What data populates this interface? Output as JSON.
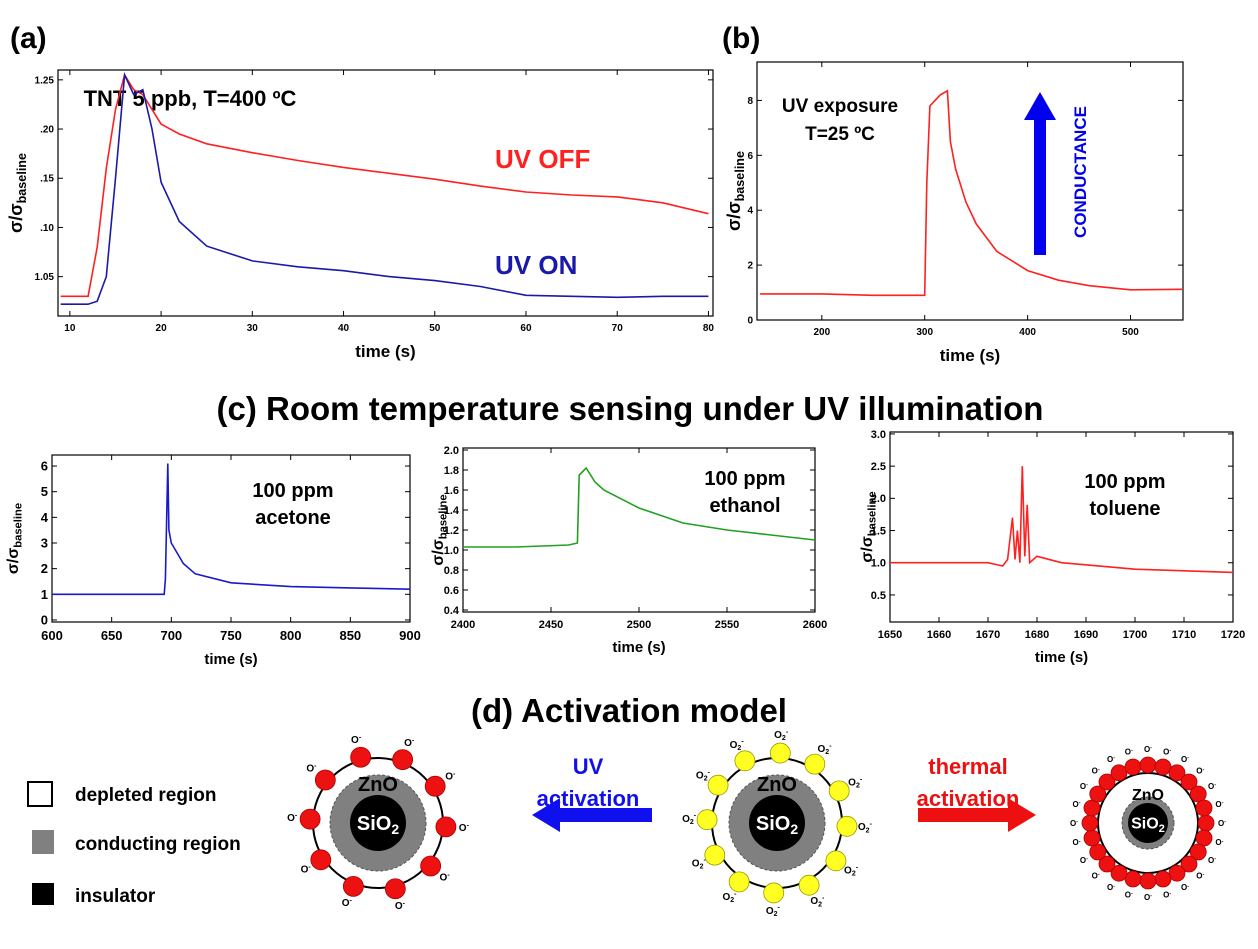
{
  "chart_data": [
    {
      "type": "line",
      "panel": "(a)",
      "xlabel": "time (s)",
      "ylabel": {
        "base": "σ/σ",
        "sub": "baseline"
      },
      "annotations": [
        "TNT  5 ppb, T=400 ºC"
      ],
      "xlim": [
        8.7,
        80.5
      ],
      "ylim": [
        1.01,
        1.26
      ],
      "xticks": [
        10,
        20,
        30,
        40,
        50,
        60,
        70,
        80
      ],
      "yticks": [
        1.05,
        {
          "value": 1.1,
          "label": ".10"
        },
        {
          "value": 1.15,
          "label": ".15"
        },
        {
          "value": 1.2,
          "label": ".20"
        },
        1.25
      ],
      "x": [
        9,
        12,
        13,
        14,
        15,
        16,
        17,
        18,
        19,
        20,
        22,
        25,
        30,
        35,
        40,
        45,
        50,
        55,
        60,
        65,
        70,
        75,
        80
      ],
      "series": [
        {
          "name": "UV OFF",
          "color": "#ff2020",
          "values": [
            1.03,
            1.03,
            1.08,
            1.16,
            1.22,
            1.255,
            1.24,
            1.235,
            1.22,
            1.205,
            1.195,
            1.185,
            1.176,
            1.168,
            1.161,
            1.155,
            1.149,
            1.142,
            1.136,
            1.133,
            1.131,
            1.125,
            1.114
          ]
        },
        {
          "name": "UV ON",
          "color": "#1a1aaa",
          "values": [
            1.022,
            1.022,
            1.025,
            1.05,
            1.15,
            1.255,
            1.235,
            1.24,
            1.2,
            1.146,
            1.106,
            1.081,
            1.066,
            1.06,
            1.056,
            1.05,
            1.046,
            1.04,
            1.031,
            1.03,
            1.029,
            1.03,
            1.03
          ]
        }
      ]
    },
    {
      "type": "line",
      "panel": "(b)",
      "xlabel": "time (s)",
      "ylabel": {
        "base": "σ/σ",
        "sub": "baseline"
      },
      "annotations": [
        "UV exposure",
        "T=25 ºC"
      ],
      "arrow_label": "CONDUCTANCE",
      "arrow_color": "#0000ee",
      "xlim": [
        137,
        551
      ],
      "ylim": [
        0,
        9.4
      ],
      "xticks": [
        200,
        300,
        400,
        500
      ],
      "yticks": [
        0,
        2,
        4,
        6,
        8
      ],
      "x": [
        140,
        200,
        250,
        300,
        302,
        305,
        315,
        322,
        325,
        330,
        340,
        350,
        370,
        400,
        430,
        460,
        500,
        550
      ],
      "series": [
        {
          "color": "#ff2020",
          "values": [
            0.95,
            0.95,
            0.9,
            0.9,
            5,
            7.8,
            8.2,
            8.35,
            6.5,
            5.5,
            4.3,
            3.5,
            2.5,
            1.8,
            1.45,
            1.25,
            1.1,
            1.12
          ]
        }
      ]
    },
    {
      "type": "line",
      "xlabel": "time (s)",
      "ylabel": {
        "base": "σ/σ",
        "sub": "baseline"
      },
      "annotations": [
        "100 ppm",
        "acetone"
      ],
      "xlim": [
        600,
        900
      ],
      "ylim": [
        -0.08,
        6.43
      ],
      "xticks": [
        600,
        650,
        700,
        750,
        800,
        850,
        900
      ],
      "yticks": [
        0,
        1,
        2,
        3,
        4,
        5,
        6
      ],
      "x": [
        600,
        690,
        694,
        695,
        697,
        698,
        700,
        710,
        720,
        750,
        800,
        850,
        900
      ],
      "series": [
        {
          "color": "#1a1acc",
          "values": [
            1,
            1,
            1,
            1.6,
            6.1,
            3.5,
            3,
            2.2,
            1.8,
            1.45,
            1.3,
            1.25,
            1.2
          ]
        }
      ]
    },
    {
      "type": "line",
      "xlabel": "time (s)",
      "ylabel": {
        "base": "σ/σ",
        "sub": "baseline"
      },
      "annotations": [
        "100 ppm",
        "ethanol"
      ],
      "xlim": [
        2400,
        2600
      ],
      "ylim": [
        0.38,
        2.02
      ],
      "xticks": [
        2400,
        2450,
        2500,
        2550,
        2600
      ],
      "yticks": [
        0.4,
        0.6,
        0.8,
        {
          "value": 1,
          "label": "1.0"
        },
        1.2,
        1.4,
        1.6,
        1.8,
        {
          "value": 2,
          "label": "2.0"
        }
      ],
      "x": [
        2400,
        2430,
        2460,
        2465,
        2466,
        2470,
        2475,
        2480,
        2500,
        2525,
        2550,
        2575,
        2600
      ],
      "series": [
        {
          "color": "#22a022",
          "values": [
            1.03,
            1.03,
            1.05,
            1.07,
            1.75,
            1.82,
            1.68,
            1.6,
            1.42,
            1.27,
            1.2,
            1.15,
            1.1
          ]
        }
      ]
    },
    {
      "type": "line",
      "xlabel": "time (s)",
      "ylabel": {
        "base": "σ/σ",
        "sub": "baseline"
      },
      "annotations": [
        "100 ppm",
        "toluene"
      ],
      "xlim": [
        1650,
        1720
      ],
      "ylim": [
        0.08,
        3.03
      ],
      "xticks": [
        1650,
        1660,
        1670,
        1680,
        1690,
        1700,
        1710,
        1720
      ],
      "yticks": [
        0.5,
        {
          "value": 1,
          "label": "1.0"
        },
        1.5,
        {
          "value": 2,
          "label": "2.0"
        },
        2.5,
        {
          "value": 3,
          "label": "3.0"
        }
      ],
      "x": [
        1650,
        1670,
        1673,
        1674,
        1675,
        1675.5,
        1676,
        1676.5,
        1677,
        1677.5,
        1678,
        1678.5,
        1680,
        1685,
        1700,
        1720
      ],
      "series": [
        {
          "color": "#ff2020",
          "values": [
            1,
            1,
            0.95,
            1.05,
            1.7,
            1.05,
            1.5,
            1,
            2.5,
            1.1,
            1.9,
            1,
            1.1,
            1,
            0.9,
            0.85
          ]
        }
      ]
    }
  ],
  "section_c": "(c) Room temperature sensing under UV illumination",
  "section_d": "(d) Activation model",
  "diagram": {
    "legend": [
      "depleted region",
      "conducting region",
      "insulator"
    ],
    "core_outer": "ZnO",
    "core_inner": {
      "base": "SiO",
      "sub": "2"
    },
    "uv_arrow": [
      "UV",
      "activation"
    ],
    "thermal_arrow": [
      "thermal",
      "activation"
    ],
    "ion_o": {
      "base": "O",
      "sup": "-"
    },
    "ion_o2": {
      "base": "O",
      "sub": "2",
      "sup": "-"
    }
  }
}
